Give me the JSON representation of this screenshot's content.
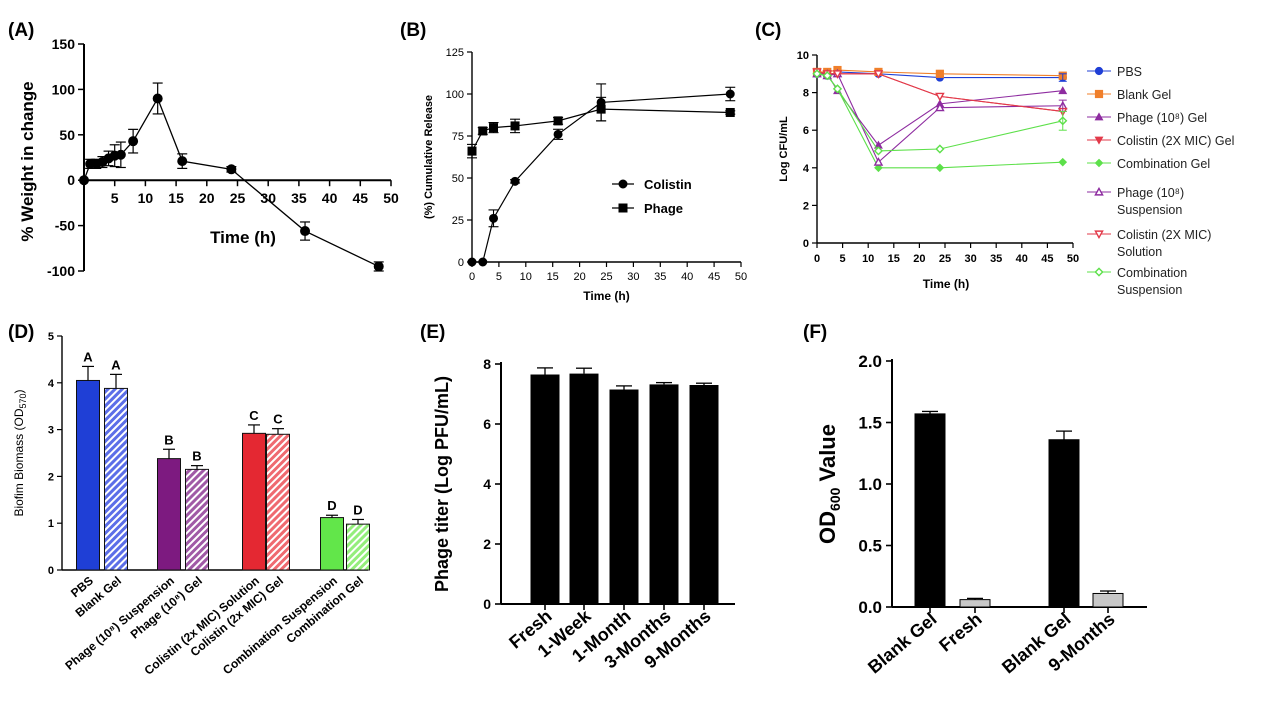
{
  "chart_data": [
    {
      "panel": "(A)",
      "type": "line",
      "xlabel": "Time (h)",
      "ylabel": "% Weight in change",
      "xlim": [
        0,
        50
      ],
      "ylim": [
        -100,
        150
      ],
      "xticks": [
        5,
        10,
        15,
        20,
        25,
        30,
        35,
        40,
        45,
        50
      ],
      "yticks": [
        -100,
        -50,
        0,
        50,
        100,
        150
      ],
      "series": [
        {
          "x": [
            0,
            1,
            2,
            3,
            4,
            5,
            6,
            8,
            12,
            16,
            24,
            36,
            48
          ],
          "y": [
            0,
            18,
            18,
            20,
            24,
            27,
            28,
            43,
            90,
            21,
            12,
            -56,
            -95
          ],
          "err": [
            0,
            5,
            5,
            6,
            8,
            12,
            14,
            13,
            17,
            8,
            3,
            10,
            5
          ]
        }
      ]
    },
    {
      "panel": "(B)",
      "type": "line",
      "xlabel": "Time (h)",
      "ylabel": "(%) Cumulative Release",
      "xlim": [
        0,
        50
      ],
      "ylim": [
        0,
        125
      ],
      "xticks": [
        0,
        5,
        10,
        15,
        20,
        25,
        30,
        35,
        40,
        45,
        50
      ],
      "yticks": [
        0,
        25,
        50,
        75,
        100,
        125
      ],
      "legend": "center-right",
      "series": [
        {
          "name": "Colistin",
          "marker": "circle",
          "x": [
            0,
            2,
            4,
            8,
            16,
            24,
            48
          ],
          "y": [
            0,
            0,
            26,
            48,
            76,
            95,
            100
          ],
          "err": [
            0,
            0,
            5,
            1,
            3,
            11,
            4
          ]
        },
        {
          "name": "Phage",
          "marker": "square",
          "x": [
            0,
            2,
            4,
            8,
            16,
            24,
            48
          ],
          "y": [
            66,
            78,
            80,
            81,
            84,
            91,
            89
          ],
          "err": [
            4,
            2,
            3,
            4,
            2,
            7,
            1
          ]
        }
      ]
    },
    {
      "panel": "(C)",
      "type": "line",
      "xlabel": "Time (h)",
      "ylabel": "Log CFU/mL",
      "xlim": [
        0,
        50
      ],
      "ylim": [
        0,
        10
      ],
      "xticks": [
        0,
        5,
        10,
        15,
        20,
        25,
        30,
        35,
        40,
        45,
        50
      ],
      "yticks": [
        0,
        2,
        4,
        6,
        8,
        10
      ],
      "legend": "right",
      "series": [
        {
          "name": "PBS",
          "color": "#1f3fd6",
          "marker": "circle",
          "filled": true,
          "x": [
            0,
            2,
            4,
            12,
            24,
            48
          ],
          "y": [
            9.0,
            8.9,
            9.1,
            9.0,
            8.8,
            8.8
          ]
        },
        {
          "name": "Blank Gel",
          "color": "#f07f2a",
          "marker": "square",
          "filled": true,
          "x": [
            0,
            2,
            4,
            12,
            24,
            48
          ],
          "y": [
            9.1,
            9.1,
            9.2,
            9.1,
            9.0,
            8.9
          ]
        },
        {
          "name": "Phage (10⁸) Gel",
          "color": "#8e2ca0",
          "marker": "triangle-up",
          "filled": true,
          "x": [
            0,
            2,
            4,
            12,
            24,
            48
          ],
          "y": [
            9.0,
            9.0,
            8.1,
            5.2,
            7.4,
            8.1
          ]
        },
        {
          "name": "Colistin (2X MIC) Gel",
          "color": "#e23a4a",
          "marker": "triangle-down",
          "filled": true,
          "x": [
            0,
            2,
            4,
            12,
            24,
            48
          ],
          "y": [
            9.1,
            9.0,
            9.0,
            9.0,
            7.8,
            7.0
          ]
        },
        {
          "name": "Combination Gel",
          "color": "#5de04a",
          "marker": "diamond",
          "filled": true,
          "x": [
            0,
            2,
            4,
            12,
            24,
            48
          ],
          "y": [
            9.0,
            8.9,
            8.2,
            4.0,
            4.0,
            4.3
          ]
        },
        {
          "name": "Phage (10⁸) Suspension",
          "color": "#8e2ca0",
          "marker": "triangle-up",
          "filled": false,
          "x": [
            0,
            2,
            4,
            12,
            24,
            48
          ],
          "y": [
            9.0,
            8.9,
            9.0,
            4.3,
            7.2,
            7.3
          ]
        },
        {
          "name": "Colistin (2X MIC) Solution",
          "color": "#e23a4a",
          "marker": "triangle-down",
          "filled": false,
          "x": [
            0,
            2,
            4,
            12,
            24,
            48
          ],
          "y": [
            9.1,
            9.0,
            9.0,
            9.0,
            7.8,
            7.0
          ]
        },
        {
          "name": "Combination Suspension",
          "color": "#5de04a",
          "marker": "diamond",
          "filled": false,
          "x": [
            0,
            2,
            4,
            12,
            24,
            48
          ],
          "y": [
            9.0,
            8.9,
            8.2,
            4.9,
            5.0,
            6.5
          ]
        }
      ]
    },
    {
      "panel": "(D)",
      "type": "bar",
      "ylabel_html": "Biofim Biomass (OD<sub>570</sub>)",
      "ylabel_text": "Biofim Biomass (OD",
      "ylabel_sub": "570",
      "ylabel_tail": ")",
      "ylim": [
        0,
        5
      ],
      "yticks": [
        0,
        1,
        2,
        3,
        4,
        5
      ],
      "categories": [
        "PBS",
        "Blank Gel",
        "Phage (10⁸) Suspension",
        "Phage (10⁸) Gel",
        "Colistin (2x MIC) Solution",
        "Colistin (2x MIC) Gel",
        "Combination Suspension",
        "Combination Gel"
      ],
      "values": [
        4.05,
        3.88,
        2.38,
        2.15,
        2.92,
        2.9,
        1.12,
        0.98
      ],
      "err": [
        0.3,
        0.3,
        0.2,
        0.08,
        0.18,
        0.12,
        0.05,
        0.1
      ],
      "letters": [
        "A",
        "A",
        "B",
        "B",
        "C",
        "C",
        "D",
        "D"
      ],
      "colors": [
        "#1f3fd6",
        "#5c6ee8",
        "#7d1a80",
        "#a05aa6",
        "#e42832",
        "#ef6a70",
        "#62e64a",
        "#94ee7c"
      ],
      "hatched": [
        false,
        true,
        false,
        true,
        false,
        true,
        false,
        true
      ]
    },
    {
      "panel": "(E)",
      "type": "bar",
      "ylabel": "Phage titer (Log PFU/mL)",
      "ylim": [
        0,
        8
      ],
      "yticks": [
        0,
        2,
        4,
        6,
        8
      ],
      "categories": [
        "Fresh",
        "1-Week",
        "1-Month",
        "3-Months",
        "9-Months"
      ],
      "values": [
        7.65,
        7.68,
        7.15,
        7.32,
        7.3
      ],
      "err": [
        0.22,
        0.18,
        0.12,
        0.06,
        0.06
      ],
      "color": "#000000"
    },
    {
      "panel": "(F)",
      "type": "bar",
      "ylabel_main": "OD",
      "ylabel_sub": "600",
      "ylabel_tail": " Value",
      "ylim": [
        0,
        2.0
      ],
      "yticks": [
        "0.0",
        "0.5",
        "1.0",
        "1.5",
        "2.0"
      ],
      "categories": [
        "Blank Gel",
        "Fresh",
        "Blank Gel",
        "9-Months"
      ],
      "values": [
        1.57,
        0.06,
        1.36,
        0.11
      ],
      "err": [
        0.02,
        0.01,
        0.07,
        0.02
      ],
      "colors": [
        "#000000",
        "#c8c8c8",
        "#000000",
        "#c8c8c8"
      ]
    }
  ]
}
